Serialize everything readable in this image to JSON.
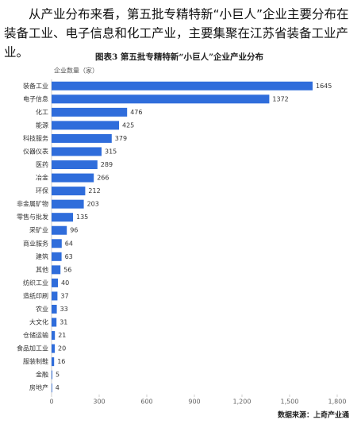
{
  "paragraph": "从产业分布来看，第五批专精特新“小巨人”企业主要分布在装备工业、电子信息和化工产业，主要集聚在江苏省装备工业产业。",
  "chart_data": {
    "type": "bar",
    "orientation": "horizontal",
    "title": "图表3 第五批专精特新“小巨人”企业产业分布",
    "axis_label": "企业数量（家）",
    "categories": [
      "装备工业",
      "电子信息",
      "化工",
      "能源",
      "科技服务",
      "仪器仪表",
      "医药",
      "冶金",
      "环保",
      "非金属矿物",
      "零售与批发",
      "采矿业",
      "商业服务",
      "建筑",
      "其他",
      "纺织工业",
      "造纸印刷",
      "农业",
      "大文化",
      "仓储运输",
      "食品加工业",
      "服装制鞋",
      "金融",
      "房地产"
    ],
    "values": [
      1645,
      1372,
      476,
      425,
      379,
      315,
      289,
      266,
      212,
      203,
      135,
      96,
      64,
      63,
      56,
      40,
      37,
      33,
      31,
      21,
      20,
      16,
      5,
      4
    ],
    "color": "#2f6ddb",
    "xlim": [
      0,
      1800
    ],
    "xticks": [
      0,
      300,
      600,
      900,
      {
        "value": 1200,
        "label": "1,200"
      },
      {
        "value": 1500,
        "label": "1,500"
      },
      {
        "value": 1800,
        "label": "1,800"
      }
    ],
    "source": "数据来源：上奇产业通"
  }
}
